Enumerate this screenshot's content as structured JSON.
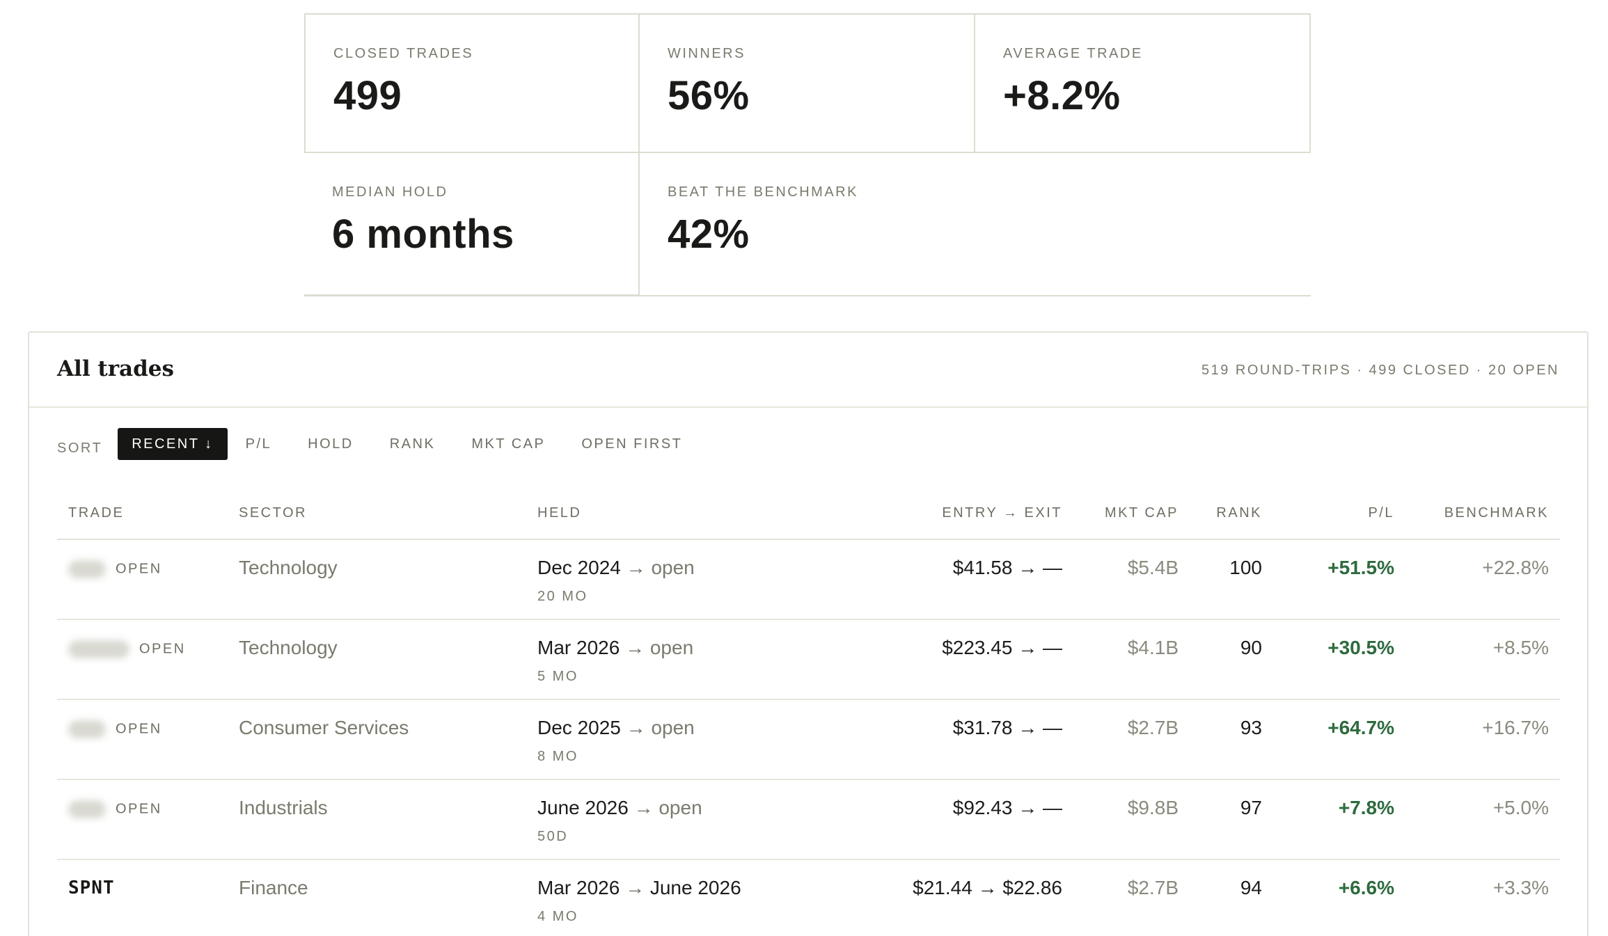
{
  "stats": [
    {
      "label": "CLOSED TRADES",
      "value": "499"
    },
    {
      "label": "WINNERS",
      "value": "56%"
    },
    {
      "label": "AVERAGE TRADE",
      "value": "+8.2%"
    },
    {
      "label": "MEDIAN HOLD",
      "value": "6 months"
    },
    {
      "label": "BEAT THE BENCHMARK",
      "value": "42%"
    }
  ],
  "panel": {
    "title": "All trades",
    "summary": "519 ROUND-TRIPS · 499 CLOSED · 20 OPEN"
  },
  "sort": {
    "label": "SORT",
    "options": [
      "RECENT ↓",
      "P/L",
      "HOLD",
      "RANK",
      "MKT CAP",
      "OPEN FIRST"
    ],
    "active": "RECENT ↓"
  },
  "table": {
    "columns": [
      "TRADE",
      "SECTOR",
      "HELD",
      "ENTRY → EXIT",
      "MKT CAP",
      "RANK",
      "P/L",
      "BENCHMARK"
    ],
    "rows": [
      {
        "ticker": "",
        "status": "OPEN",
        "sector": "Technology",
        "held_start": "Dec 2024",
        "held_arrow": "→",
        "held_end": "open",
        "held_duration": "20 MO",
        "entry_exit": "$41.58 → —",
        "mkt_cap": "$5.4B",
        "rank": "100",
        "pl": "+51.5%",
        "benchmark": "+22.8%"
      },
      {
        "ticker": "",
        "status": "OPEN",
        "sector": "Technology",
        "held_start": "Mar 2026",
        "held_arrow": "→",
        "held_end": "open",
        "held_duration": "5 MO",
        "entry_exit": "$223.45 → —",
        "mkt_cap": "$4.1B",
        "rank": "90",
        "pl": "+30.5%",
        "benchmark": "+8.5%"
      },
      {
        "ticker": "",
        "status": "OPEN",
        "sector": "Consumer Services",
        "held_start": "Dec 2025",
        "held_arrow": "→",
        "held_end": "open",
        "held_duration": "8 MO",
        "entry_exit": "$31.78 → —",
        "mkt_cap": "$2.7B",
        "rank": "93",
        "pl": "+64.7%",
        "benchmark": "+16.7%"
      },
      {
        "ticker": "",
        "status": "OPEN",
        "sector": "Industrials",
        "held_start": "June 2026",
        "held_arrow": "→",
        "held_end": "open",
        "held_duration": "50D",
        "entry_exit": "$92.43 → —",
        "mkt_cap": "$9.8B",
        "rank": "97",
        "pl": "+7.8%",
        "benchmark": "+5.0%"
      },
      {
        "ticker": "SPNT",
        "status": "",
        "sector": "Finance",
        "held_start": "Mar 2026",
        "held_arrow": "→",
        "held_end": "June 2026",
        "held_duration": "4 MO",
        "entry_exit": "$21.44 → $22.86",
        "mkt_cap": "$2.7B",
        "rank": "94",
        "pl": "+6.6%",
        "benchmark": "+3.3%"
      }
    ]
  },
  "colors": {
    "accent_dark": "#161614",
    "positive": "#2e6b3e",
    "muted": "#7a7a6e",
    "border": "#e2e2da"
  }
}
